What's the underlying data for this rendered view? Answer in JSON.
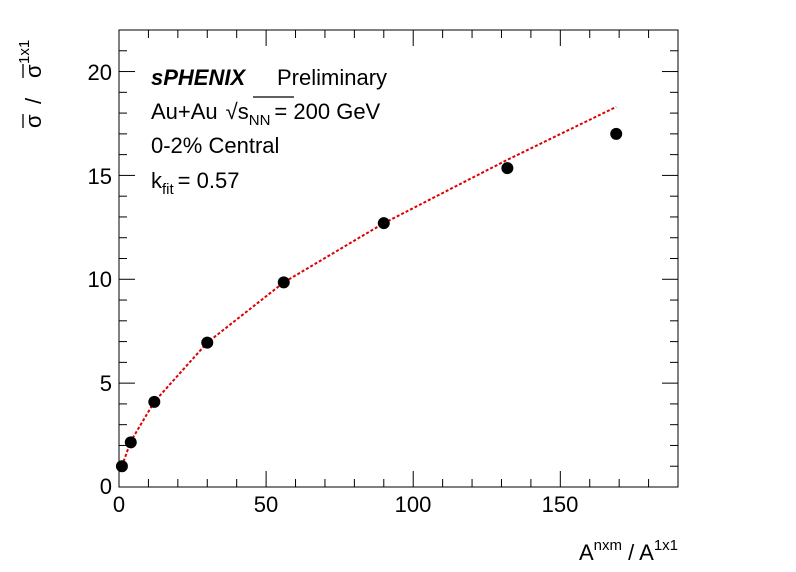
{
  "chart_data": {
    "type": "scatter",
    "xlabel_main": "A",
    "xlabel_sup1": "nxm",
    "xlabel_mid": " / A",
    "xlabel_sup2": "1x1",
    "ylabel_num": "σ",
    "ylabel_sep": "/",
    "ylabel_den": "σ",
    "ylabel_sup": "1x1",
    "xlim": [
      0,
      190
    ],
    "ylim": [
      0,
      22
    ],
    "xticks": [
      "0",
      "50",
      "100",
      "150"
    ],
    "yticks": [
      "0",
      "5",
      "10",
      "15",
      "20"
    ],
    "series": [
      {
        "kind": "points",
        "color": "#000000",
        "x": [
          1,
          4,
          12,
          30,
          56,
          90,
          132,
          169
        ],
        "y": [
          1.0,
          2.15,
          4.1,
          6.95,
          9.85,
          12.7,
          15.35,
          17.0
        ]
      },
      {
        "kind": "fit",
        "color": "#dd0000",
        "x": [
          1,
          4,
          12,
          30,
          56,
          90,
          132,
          169
        ],
        "y": [
          1.0,
          2.2,
          4.1,
          6.95,
          9.85,
          12.7,
          15.75,
          18.3
        ]
      }
    ],
    "annotations": {
      "experiment": "sPHENIX",
      "status": "Preliminary",
      "system_prefix": "Au+Au",
      "sqrt_symbol": "√",
      "s_label": "s",
      "s_sub": "NN",
      "energy": "= 200 GeV",
      "centrality": "0-2% Central",
      "k_label": "k",
      "k_sub": "fit",
      "k_value": "= 0.57"
    }
  }
}
